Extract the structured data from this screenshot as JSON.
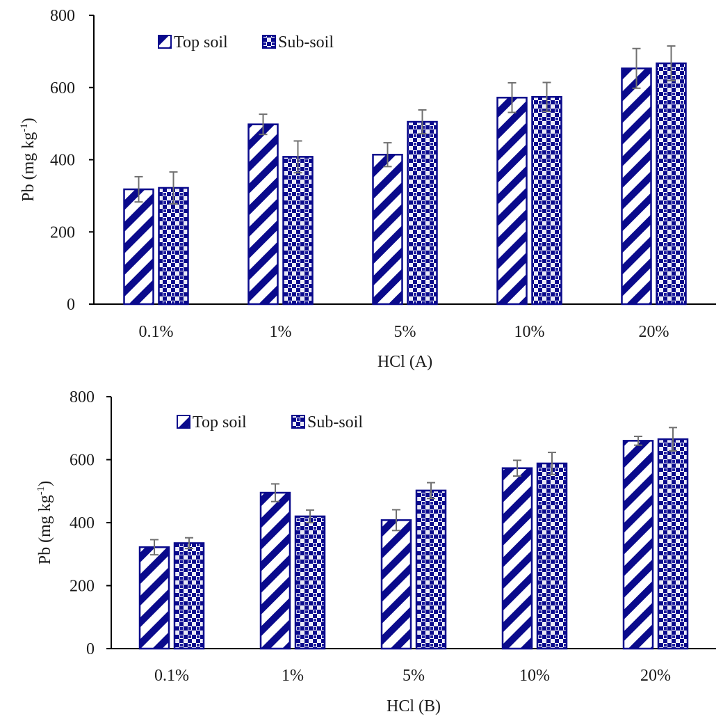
{
  "colors": {
    "bar_outline": "#0a0a8c",
    "bar_fill": "#0a0a8c",
    "bar_background": "#ffffff",
    "error_bar": "#707070",
    "axis": "#000000"
  },
  "chart_data": [
    {
      "type": "bar",
      "categories": [
        "0.1%",
        "1%",
        "5%",
        "10%",
        "20%"
      ],
      "series": [
        {
          "name": "Top soil",
          "pattern": "diagonal-stripes",
          "values": [
            318,
            498,
            414,
            572,
            653
          ],
          "errors": [
            35,
            28,
            33,
            41,
            55
          ]
        },
        {
          "name": "Sub-soil",
          "pattern": "checkered",
          "values": [
            322,
            408,
            505,
            574,
            667
          ],
          "errors": [
            44,
            44,
            33,
            40,
            48
          ]
        }
      ],
      "title": "",
      "xlabel": "HCl (A)",
      "ylabel_main": "Pb (mg kg",
      "ylabel_sup": "-1",
      "ylabel_end": ")",
      "ylim": [
        0,
        800
      ],
      "yticks": [
        0,
        200,
        400,
        600,
        800
      ],
      "ytick_labels": [
        "0",
        "200",
        "400",
        "600",
        "800"
      ],
      "grid": false,
      "legend": "top-left"
    },
    {
      "type": "bar",
      "categories": [
        "0.1%",
        "1%",
        "5%",
        "10%",
        "20%"
      ],
      "series": [
        {
          "name": "Top soil",
          "pattern": "diagonal-stripes",
          "values": [
            322,
            495,
            408,
            573,
            660
          ],
          "errors": [
            24,
            28,
            33,
            25,
            14
          ]
        },
        {
          "name": "Sub-soil",
          "pattern": "checkered",
          "values": [
            335,
            420,
            502,
            588,
            665
          ],
          "errors": [
            17,
            20,
            25,
            35,
            37
          ]
        }
      ],
      "title": "",
      "xlabel": "HCl (B)",
      "ylabel_main": "Pb (mg kg",
      "ylabel_sup": "-1",
      "ylabel_end": ")",
      "ylim": [
        0,
        800
      ],
      "yticks": [
        0,
        200,
        400,
        600,
        800
      ],
      "ytick_labels": [
        "0",
        "200",
        "400",
        "600",
        "800"
      ],
      "grid": false,
      "legend": "top-left"
    }
  ]
}
